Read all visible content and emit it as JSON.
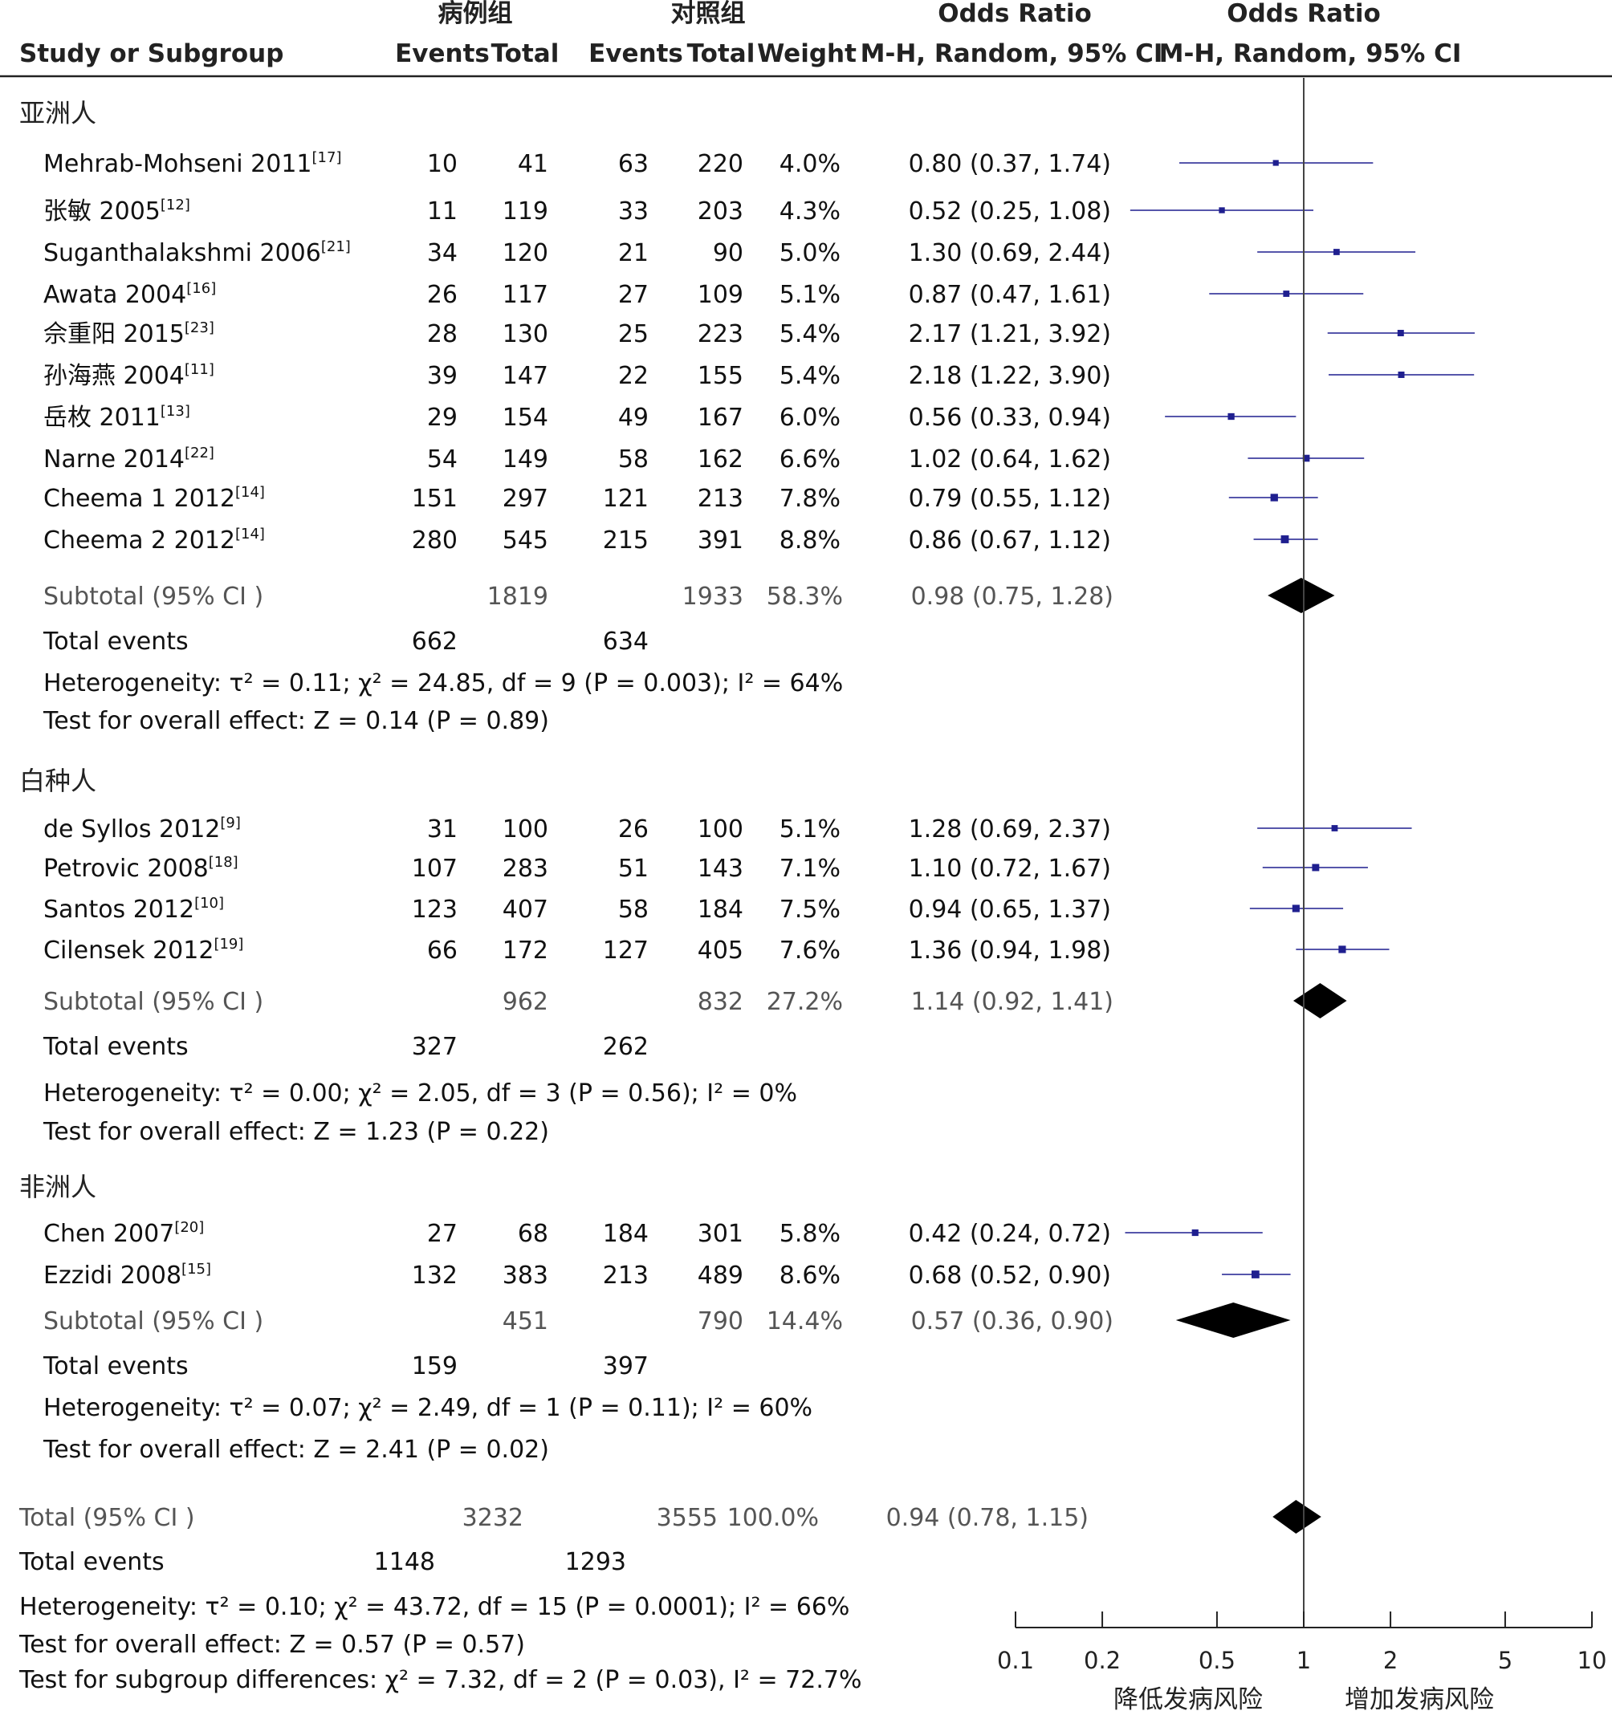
{
  "headers": {
    "case_group": "病例组",
    "control_group": "对照组",
    "or_text": "Odds Ratio",
    "or_plot": "Odds Ratio",
    "study": "Study or Subgroup",
    "events1": "Events",
    "total1": "Total",
    "events2": "Events",
    "total2": "Total",
    "weight": "Weight",
    "method_text": "M-H, Random, 95% CI",
    "method_plot": "M-H, Random, 95% CI"
  },
  "axis": {
    "scale": "log",
    "range": [
      0.1,
      10
    ],
    "ticks": [
      "0.1",
      "0.2",
      "0.5",
      "1",
      "2",
      "5",
      "10"
    ],
    "label_left": "降低发病风险",
    "label_right": "增加发病风险"
  },
  "colors": {
    "point": "#1f1f8f",
    "ci_line": "#1f1f8f",
    "diamond": "#000000",
    "ref_line": "#444444"
  },
  "chart_data": {
    "type": "forest",
    "groups": [
      {
        "name": "亚洲人",
        "studies": [
          {
            "name": "Mehrab-Mohseni 2011",
            "ref": "[17]",
            "e1": "10",
            "t1": "41",
            "e2": "63",
            "t2": "220",
            "weight": "4.0%",
            "ci_text": "0.80 (0.37, 1.74)",
            "or": 0.8,
            "lo": 0.37,
            "hi": 1.74
          },
          {
            "name": "张敏 2005",
            "ref": "[12]",
            "e1": "11",
            "t1": "119",
            "e2": "33",
            "t2": "203",
            "weight": "4.3%",
            "ci_text": "0.52 (0.25, 1.08)",
            "or": 0.52,
            "lo": 0.25,
            "hi": 1.08
          },
          {
            "name": "Suganthalakshmi 2006",
            "ref": "[21]",
            "e1": "34",
            "t1": "120",
            "e2": "21",
            "t2": "90",
            "weight": "5.0%",
            "ci_text": "1.30 (0.69, 2.44)",
            "or": 1.3,
            "lo": 0.69,
            "hi": 2.44
          },
          {
            "name": "Awata 2004",
            "ref": "[16]",
            "e1": "26",
            "t1": "117",
            "e2": "27",
            "t2": "109",
            "weight": "5.1%",
            "ci_text": "0.87 (0.47, 1.61)",
            "or": 0.87,
            "lo": 0.47,
            "hi": 1.61
          },
          {
            "name": "佘重阳 2015",
            "ref": "[23]",
            "e1": "28",
            "t1": "130",
            "e2": "25",
            "t2": "223",
            "weight": "5.4%",
            "ci_text": "2.17 (1.21, 3.92)",
            "or": 2.17,
            "lo": 1.21,
            "hi": 3.92
          },
          {
            "name": "孙海燕 2004",
            "ref": "[11]",
            "e1": "39",
            "t1": "147",
            "e2": "22",
            "t2": "155",
            "weight": "5.4%",
            "ci_text": "2.18 (1.22, 3.90)",
            "or": 2.18,
            "lo": 1.22,
            "hi": 3.9
          },
          {
            "name": "岳枚 2011",
            "ref": "[13]",
            "e1": "29",
            "t1": "154",
            "e2": "49",
            "t2": "167",
            "weight": "6.0%",
            "ci_text": "0.56 (0.33, 0.94)",
            "or": 0.56,
            "lo": 0.33,
            "hi": 0.94
          },
          {
            "name": "Narne 2014",
            "ref": "[22]",
            "e1": "54",
            "t1": "149",
            "e2": "58",
            "t2": "162",
            "weight": "6.6%",
            "ci_text": "1.02 (0.64, 1.62)",
            "or": 1.02,
            "lo": 0.64,
            "hi": 1.62
          },
          {
            "name": "Cheema 1 2012",
            "ref": "[14]",
            "e1": "151",
            "t1": "297",
            "e2": "121",
            "t2": "213",
            "weight": "7.8%",
            "ci_text": "0.79 (0.55, 1.12)",
            "or": 0.79,
            "lo": 0.55,
            "hi": 1.12
          },
          {
            "name": "Cheema 2 2012",
            "ref": "[14]",
            "e1": "280",
            "t1": "545",
            "e2": "215",
            "t2": "391",
            "weight": "8.8%",
            "ci_text": "0.86 (0.67, 1.12)",
            "or": 0.86,
            "lo": 0.67,
            "hi": 1.12
          }
        ],
        "subtotal": {
          "label": "Subtotal (95% CI )",
          "t1": "1819",
          "t2": "1933",
          "weight": "58.3%",
          "ci_text": "0.98 (0.75, 1.28)",
          "or": 0.98,
          "lo": 0.75,
          "hi": 1.28
        },
        "events": {
          "label": "Total events",
          "e1": "662",
          "e2": "634"
        },
        "heterogeneity": "Heterogeneity: τ² = 0.11; χ² = 24.85, df = 9 (P = 0.003); I² = 64%",
        "overall": "Test for overall effect: Z = 0.14 (P = 0.89)"
      },
      {
        "name": "白种人",
        "studies": [
          {
            "name": "de Syllos 2012",
            "ref": "[9]",
            "e1": "31",
            "t1": "100",
            "e2": "26",
            "t2": "100",
            "weight": "5.1%",
            "ci_text": "1.28 (0.69, 2.37)",
            "or": 1.28,
            "lo": 0.69,
            "hi": 2.37
          },
          {
            "name": "Petrovic 2008",
            "ref": "[18]",
            "e1": "107",
            "t1": "283",
            "e2": "51",
            "t2": "143",
            "weight": "7.1%",
            "ci_text": "1.10 (0.72, 1.67)",
            "or": 1.1,
            "lo": 0.72,
            "hi": 1.67
          },
          {
            "name": "Santos 2012",
            "ref": "[10]",
            "e1": "123",
            "t1": "407",
            "e2": "58",
            "t2": "184",
            "weight": "7.5%",
            "ci_text": "0.94 (0.65, 1.37)",
            "or": 0.94,
            "lo": 0.65,
            "hi": 1.37
          },
          {
            "name": "Cilensek 2012",
            "ref": "[19]",
            "e1": "66",
            "t1": "172",
            "e2": "127",
            "t2": "405",
            "weight": "7.6%",
            "ci_text": "1.36 (0.94, 1.98)",
            "or": 1.36,
            "lo": 0.94,
            "hi": 1.98
          }
        ],
        "subtotal": {
          "label": "Subtotal (95% CI )",
          "t1": "962",
          "t2": "832",
          "weight": "27.2%",
          "ci_text": "1.14 (0.92, 1.41)",
          "or": 1.14,
          "lo": 0.92,
          "hi": 1.41
        },
        "events": {
          "label": "Total events",
          "e1": "327",
          "e2": "262"
        },
        "heterogeneity": "Heterogeneity: τ² = 0.00; χ² = 2.05, df = 3 (P = 0.56); I² = 0%",
        "overall": "Test for overall effect: Z = 1.23 (P = 0.22)"
      },
      {
        "name": "非洲人",
        "studies": [
          {
            "name": "Chen 2007",
            "ref": "[20]",
            "e1": "27",
            "t1": "68",
            "e2": "184",
            "t2": "301",
            "weight": "5.8%",
            "ci_text": "0.42 (0.24, 0.72)",
            "or": 0.42,
            "lo": 0.24,
            "hi": 0.72
          },
          {
            "name": "Ezzidi 2008",
            "ref": "[15]",
            "e1": "132",
            "t1": "383",
            "e2": "213",
            "t2": "489",
            "weight": "8.6%",
            "ci_text": "0.68 (0.52, 0.90)",
            "or": 0.68,
            "lo": 0.52,
            "hi": 0.9
          }
        ],
        "subtotal": {
          "label": "Subtotal (95% CI )",
          "t1": "451",
          "t2": "790",
          "weight": "14.4%",
          "ci_text": "0.57 (0.36, 0.90)",
          "or": 0.57,
          "lo": 0.36,
          "hi": 0.9
        },
        "events": {
          "label": "Total events",
          "e1": "159",
          "e2": "397"
        },
        "heterogeneity": "Heterogeneity: τ² = 0.07; χ² = 2.49, df = 1 (P = 0.11); I² = 60%",
        "overall": "Test for overall effect: Z = 2.41 (P = 0.02)"
      }
    ],
    "total": {
      "label": "Total (95% CI )",
      "t1": "3232",
      "t2": "3555",
      "weight": "100.0%",
      "ci_text": "0.94 (0.78, 1.15)",
      "or": 0.94,
      "lo": 0.78,
      "hi": 1.15
    },
    "total_events": {
      "label": "Total events",
      "e1": "1148",
      "e2": "1293"
    },
    "heterogeneity": "Heterogeneity: τ² = 0.10; χ² = 43.72, df = 15 (P = 0.0001); I² = 66%",
    "overall": "Test for overall effect: Z = 0.57 (P = 0.57)",
    "subgroup": "Test for subgroup differences: χ² = 7.32, df = 2 (P = 0.03), I² = 72.7%"
  }
}
